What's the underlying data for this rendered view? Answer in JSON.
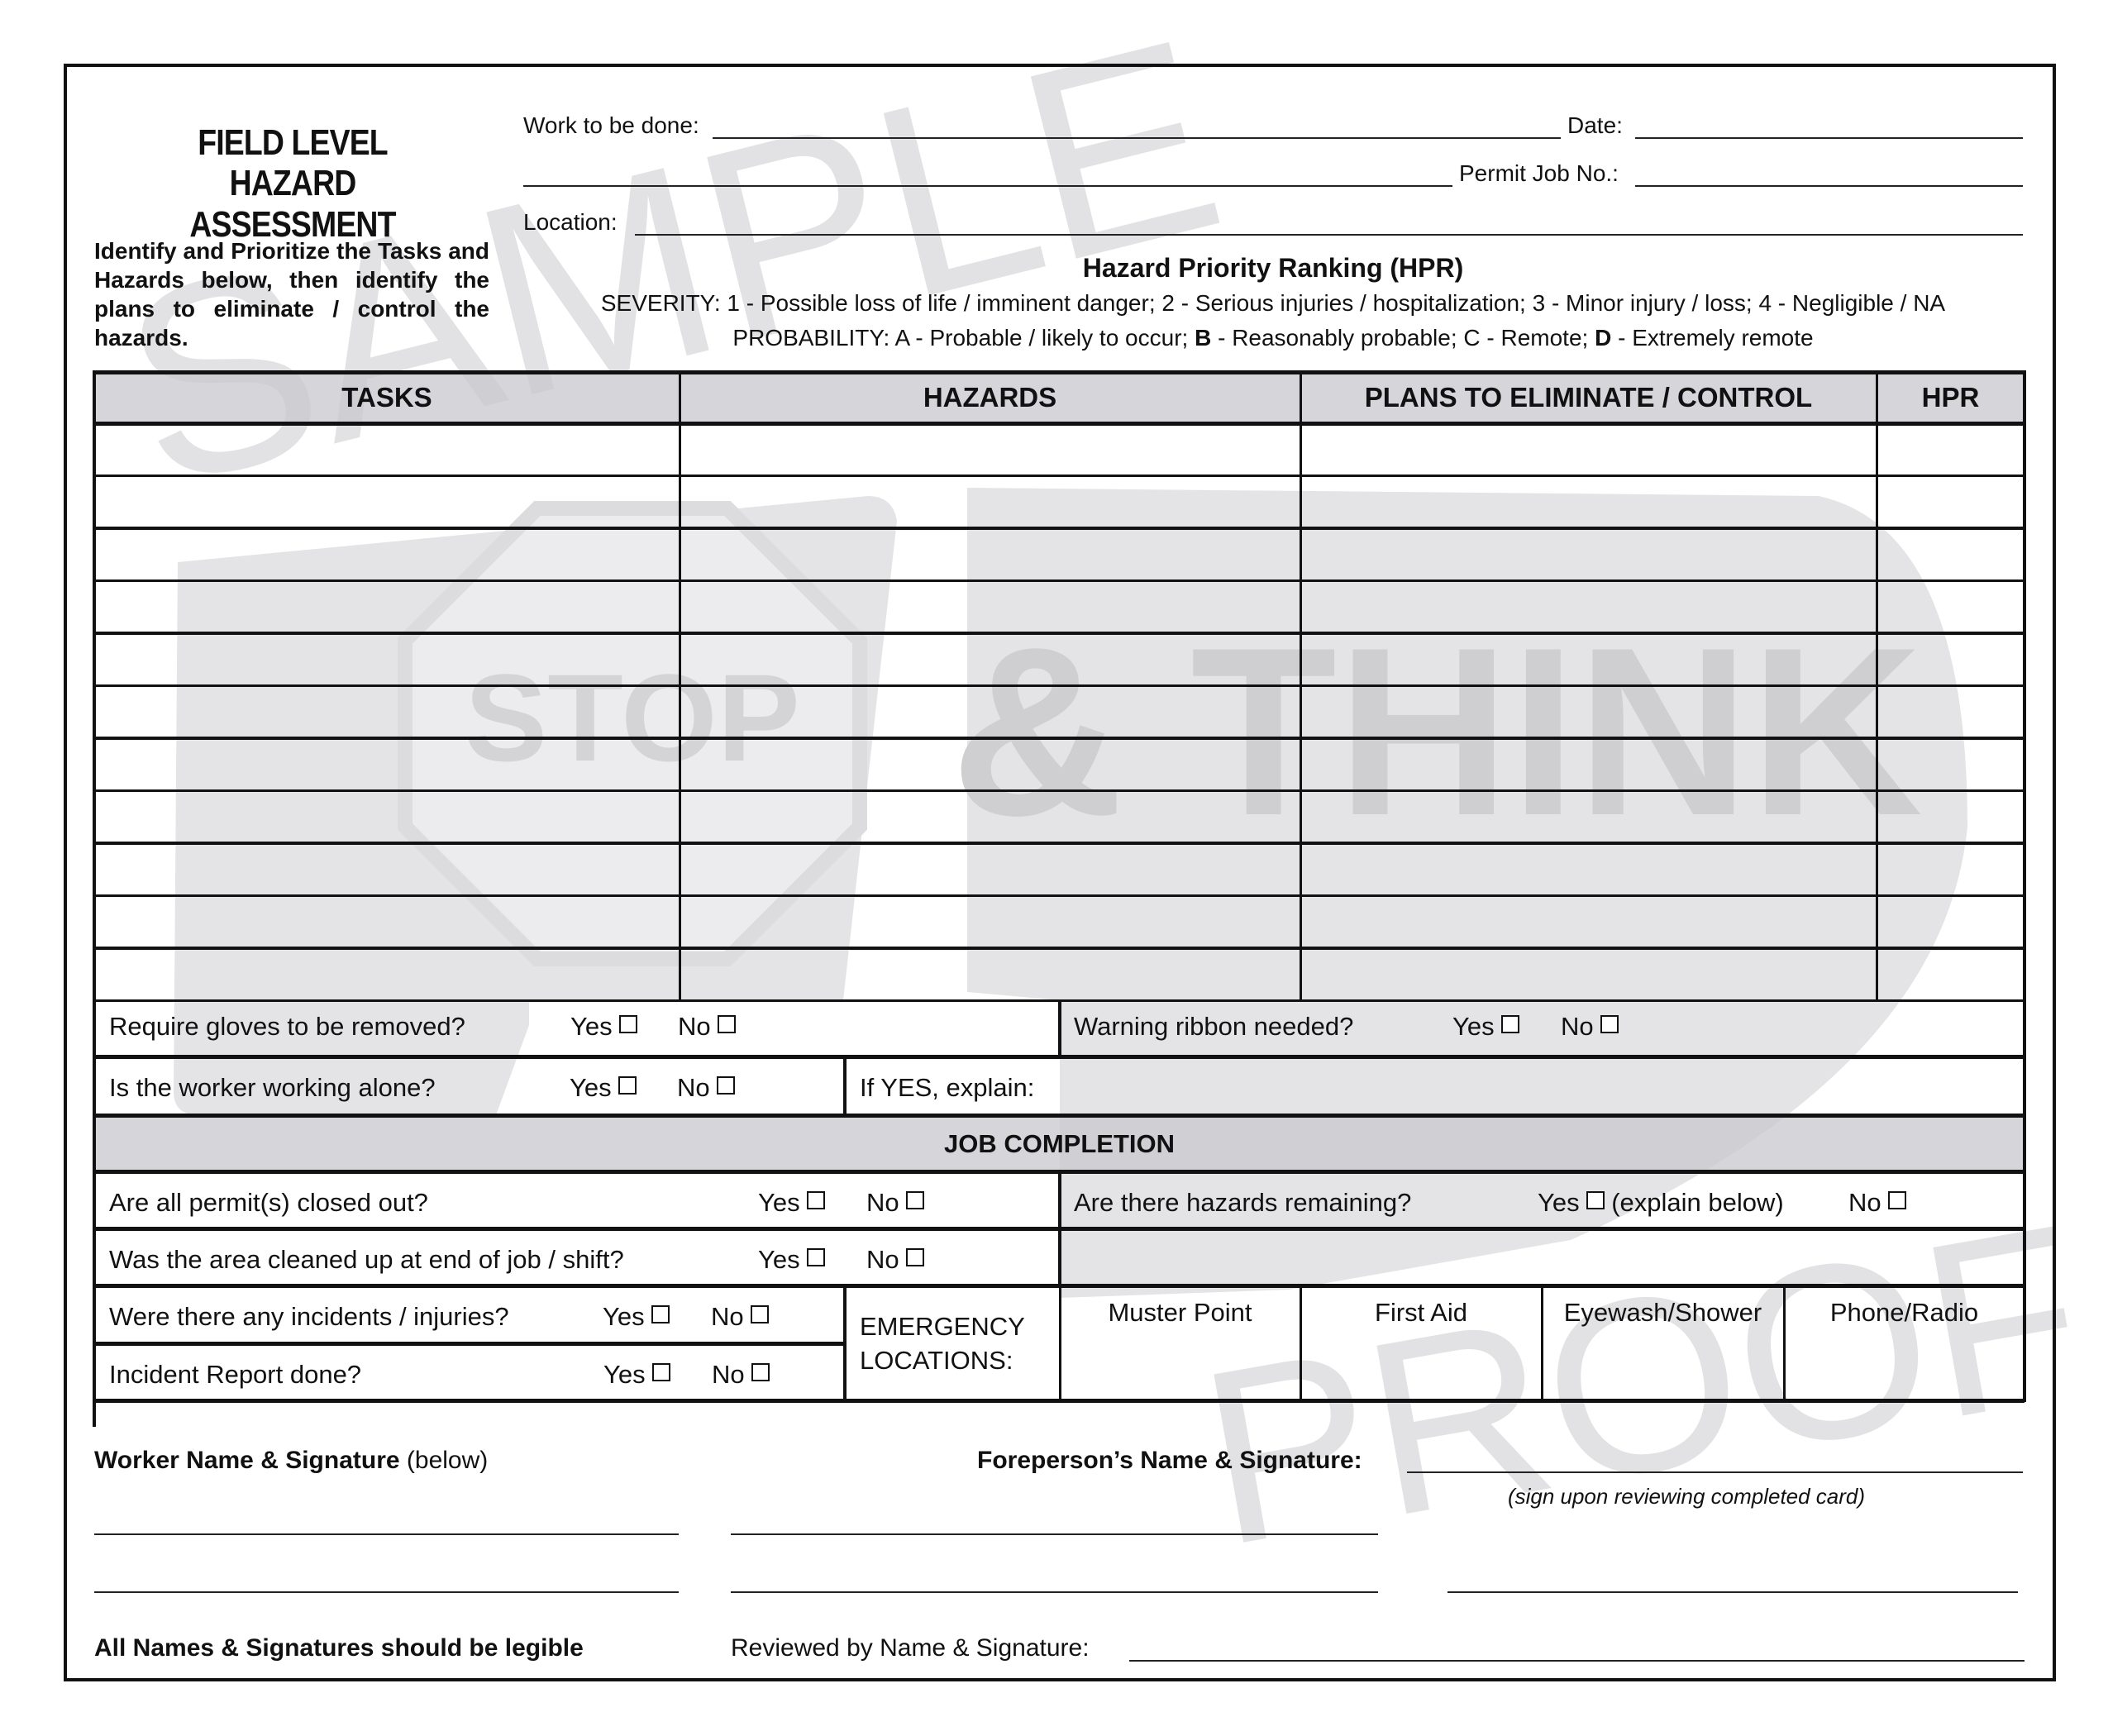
{
  "watermark": {
    "sample": "SAMPLE",
    "stop": "STOP",
    "think": "& THINK",
    "proof": "PROOF",
    "color": "#e3e3e5"
  },
  "header": {
    "title_line1": "FIELD LEVEL",
    "title_line2": "HAZARD ASSESSMENT",
    "instructions": "Identify and Prioritize the Tasks and Hazards below, then identify the plans to eliminate / control the hazards.",
    "work_label": "Work to be done:",
    "date_label": "Date:",
    "permit_label": "Permit Job No.:",
    "location_label": "Location:"
  },
  "hpr": {
    "title": "Hazard Priority Ranking (HPR)",
    "severity": "SEVERITY: 1 - Possible loss of life / imminent danger; 2 - Serious injuries / hospitalization; 3 - Minor injury / loss; 4 - Negligible / NA",
    "probability_prefix": "PROBABILITY: A - Probable / likely to occur; ",
    "probability_b": "B",
    "probability_b_text": " - Reasonably probable; C - Remote; ",
    "probability_d": "D",
    "probability_d_text": " - Extremely remote"
  },
  "table": {
    "columns": [
      "TASKS",
      "HAZARDS",
      "PLANS TO ELIMINATE / CONTROL",
      "HPR"
    ],
    "row_count": 11
  },
  "questions": {
    "gloves": "Require gloves to be removed?",
    "ribbon": "Warning ribbon needed?",
    "alone": "Is the worker working alone?",
    "if_yes": "If YES, explain:",
    "yes": "Yes",
    "no": "No"
  },
  "completion": {
    "title": "JOB COMPLETION",
    "permits": "Are all permit(s) closed out?",
    "hazards_remaining": "Are there hazards remaining?",
    "explain_below": "(explain below)",
    "cleaned": "Was the area cleaned up at end of job / shift?",
    "incidents": "Were there any incidents / injuries?",
    "report": "Incident Report done?",
    "emergency_line1": "EMERGENCY",
    "emergency_line2": "LOCATIONS:",
    "locations": [
      "Muster Point",
      "First Aid",
      "Eyewash/Shower",
      "Phone/Radio"
    ]
  },
  "signatures": {
    "worker_bold": "Worker Name & Signature",
    "worker_suffix": "(below)",
    "foreperson": "Foreperson’s Name & Signature:",
    "sign_note": "(sign upon reviewing completed card)",
    "legible": "All Names & Signatures should be legible",
    "reviewed": "Reviewed by Name & Signature:"
  }
}
